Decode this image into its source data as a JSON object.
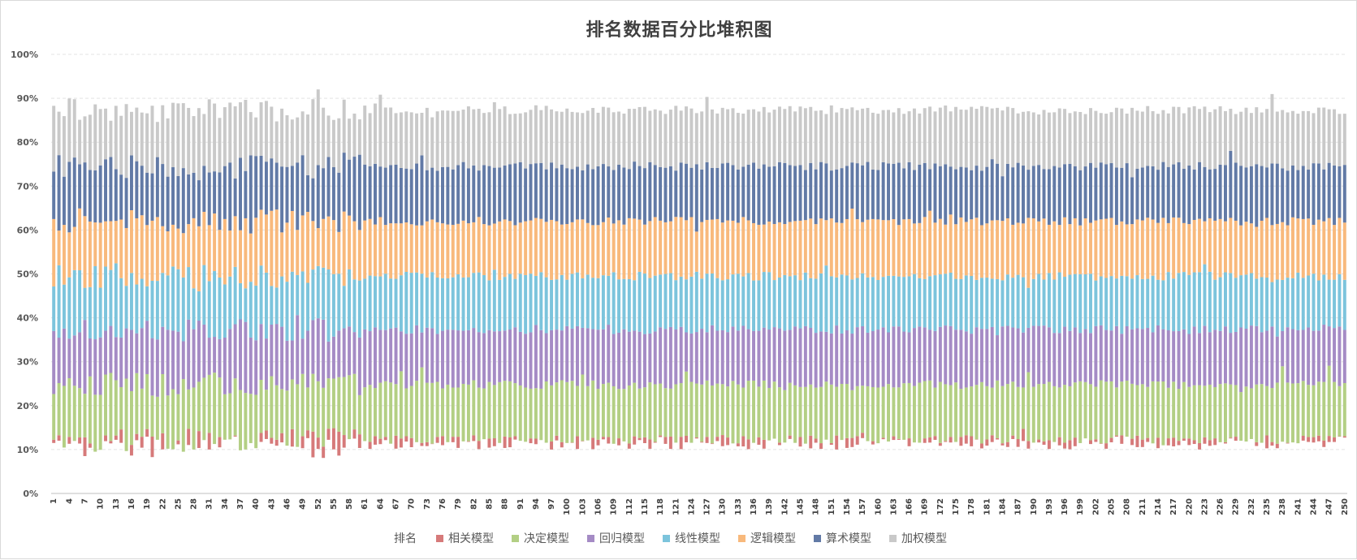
{
  "chart_data": {
    "type": "bar",
    "stacked": "percent",
    "title": "排名数据百分比堆积图",
    "xlabel": "",
    "ylabel": "",
    "ylim": [
      0,
      100
    ],
    "y_ticks": [
      "0%",
      "10%",
      "20%",
      "30%",
      "40%",
      "50%",
      "60%",
      "70%",
      "80%",
      "90%",
      "100%"
    ],
    "x_count": 250,
    "x_tick_every": 3,
    "legend": {
      "position": "bottom",
      "title": "排名",
      "items": [
        "相关模型",
        "决定模型",
        "回归模型",
        "线性模型",
        "逻辑模型",
        "算术模型",
        "加权模型"
      ]
    },
    "series": [
      {
        "name": "相关模型",
        "color": "#d67a7a",
        "typical_percent": 12.3
      },
      {
        "name": "决定模型",
        "color": "#b3cf84",
        "typical_percent": 12.5
      },
      {
        "name": "回归模型",
        "color": "#a58bc5",
        "typical_percent": 12.2
      },
      {
        "name": "线性模型",
        "color": "#7cc4dc",
        "typical_percent": 12.5
      },
      {
        "name": "逻辑模型",
        "color": "#f8b97c",
        "typical_percent": 12.5
      },
      {
        "name": "算术模型",
        "color": "#627aa6",
        "typical_percent": 12.9
      },
      {
        "name": "加权模型",
        "color": "#c9c9c9",
        "typical_percent": 12.6
      }
    ],
    "notes": {
      "bottom_transparent_range_percent": [
        10,
        13
      ],
      "typical_cumulative_boundaries_percent": [
        12.3,
        24.8,
        37.3,
        49.5,
        62.0,
        74.5,
        87.4,
        100
      ]
    }
  }
}
